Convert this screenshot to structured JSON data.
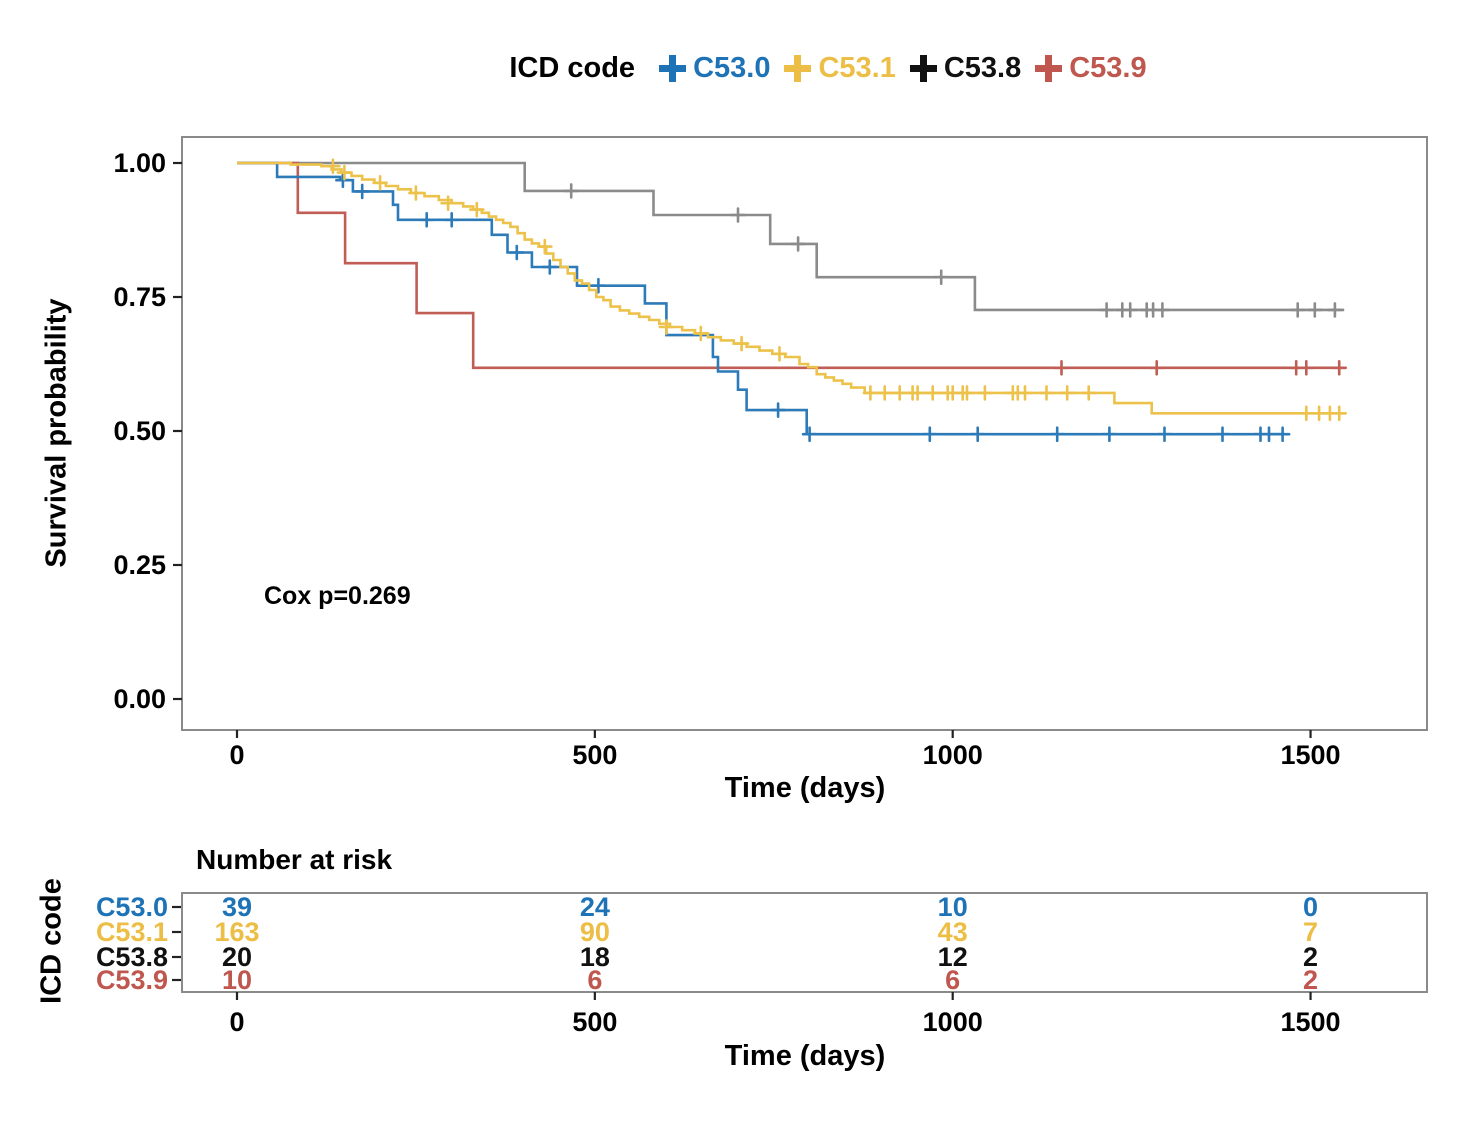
{
  "legend": {
    "title": "ICD code"
  },
  "annotation": {
    "cox_p": "Cox p=0.269"
  },
  "axes": {
    "x": {
      "label": "Time (days)",
      "tick_labels": [
        "0",
        "500",
        "1000",
        "1500"
      ],
      "tick_values": [
        0,
        500,
        1000,
        1500
      ]
    },
    "y": {
      "label": "Survival probability",
      "tick_labels": [
        "1.00",
        "0.75",
        "0.50",
        "0.25",
        "0.00"
      ],
      "tick_values": [
        1.0,
        0.75,
        0.5,
        0.25,
        0.0
      ]
    }
  },
  "risk_table": {
    "title": "Number at risk",
    "ylabel": "ICD code",
    "xlabel": "Time (days)",
    "times": [
      0,
      500,
      1000,
      1500
    ],
    "rows": [
      {
        "label": "C53.0",
        "color": "#1d73b6",
        "values": [
          "39",
          "24",
          "10",
          "0"
        ]
      },
      {
        "label": "C53.1",
        "color": "#ecbe45",
        "values": [
          "163",
          "90",
          "43",
          "7"
        ]
      },
      {
        "label": "C53.8",
        "color": "#111111",
        "values": [
          "20",
          "18",
          "12",
          "2"
        ]
      },
      {
        "label": "C53.9",
        "color": "#bf574f",
        "values": [
          "10",
          "6",
          "6",
          "2"
        ]
      }
    ]
  },
  "chart_data": {
    "type": "line",
    "subtype": "kaplan-meier-step",
    "title": "",
    "xlabel": "Time (days)",
    "ylabel": "Survival probability",
    "xlim": [
      0,
      1662
    ],
    "ylim": [
      0,
      1.05
    ],
    "x_ticks": [
      0,
      500,
      1000,
      1500
    ],
    "y_ticks": [
      0,
      0.25,
      0.5,
      0.75,
      1.0
    ],
    "grid": false,
    "legend_position": "top",
    "annotations": [
      {
        "text": "Cox p=0.269",
        "x_day": 60,
        "y_prob": 0.21
      }
    ],
    "series": [
      {
        "name": "C53.0",
        "label_color": "#1d73b6",
        "curve_color": "#2d7ab8",
        "start": [
          0,
          1.0
        ],
        "steps": [
          [
            56,
            0.974
          ],
          [
            144,
            0.968
          ],
          [
            162,
            0.947
          ],
          [
            218,
            0.922
          ],
          [
            225,
            0.894
          ],
          [
            356,
            0.866
          ],
          [
            378,
            0.833
          ],
          [
            412,
            0.806
          ],
          [
            475,
            0.771
          ],
          [
            570,
            0.738
          ],
          [
            600,
            0.679
          ],
          [
            665,
            0.638
          ],
          [
            672,
            0.611
          ],
          [
            700,
            0.577
          ],
          [
            712,
            0.539
          ],
          [
            796,
            0.494
          ]
        ],
        "censors": [
          [
            148,
            0.968
          ],
          [
            175,
            0.947
          ],
          [
            265,
            0.894
          ],
          [
            300,
            0.894
          ],
          [
            391,
            0.833
          ],
          [
            437,
            0.806
          ],
          [
            505,
            0.771
          ],
          [
            756,
            0.539
          ],
          [
            800,
            0.494
          ],
          [
            968,
            0.494
          ],
          [
            1035,
            0.494
          ],
          [
            1146,
            0.494
          ],
          [
            1219,
            0.494
          ],
          [
            1296,
            0.494
          ],
          [
            1377,
            0.494
          ],
          [
            1430,
            0.494
          ],
          [
            1442,
            0.494
          ],
          [
            1461,
            0.494
          ]
        ],
        "end_day": 1464
      },
      {
        "name": "C53.1",
        "label_color": "#ecbe45",
        "curve_color": "#ecc24a",
        "start": [
          0,
          1.0
        ],
        "steps": [
          [
            75,
            0.997
          ],
          [
            118,
            0.994
          ],
          [
            132,
            0.988
          ],
          [
            146,
            0.982
          ],
          [
            160,
            0.976
          ],
          [
            175,
            0.969
          ],
          [
            192,
            0.963
          ],
          [
            208,
            0.957
          ],
          [
            225,
            0.951
          ],
          [
            243,
            0.944
          ],
          [
            262,
            0.938
          ],
          [
            282,
            0.931
          ],
          [
            300,
            0.925
          ],
          [
            316,
            0.919
          ],
          [
            330,
            0.913
          ],
          [
            342,
            0.907
          ],
          [
            352,
            0.9
          ],
          [
            362,
            0.894
          ],
          [
            372,
            0.888
          ],
          [
            382,
            0.881
          ],
          [
            392,
            0.869
          ],
          [
            402,
            0.857
          ],
          [
            412,
            0.85
          ],
          [
            422,
            0.844
          ],
          [
            432,
            0.831
          ],
          [
            442,
            0.819
          ],
          [
            452,
            0.806
          ],
          [
            462,
            0.794
          ],
          [
            472,
            0.781
          ],
          [
            482,
            0.775
          ],
          [
            492,
            0.763
          ],
          [
            502,
            0.75
          ],
          [
            512,
            0.744
          ],
          [
            522,
            0.732
          ],
          [
            535,
            0.725
          ],
          [
            548,
            0.719
          ],
          [
            562,
            0.713
          ],
          [
            576,
            0.707
          ],
          [
            590,
            0.7
          ],
          [
            605,
            0.694
          ],
          [
            622,
            0.688
          ],
          [
            640,
            0.682
          ],
          [
            658,
            0.675
          ],
          [
            676,
            0.669
          ],
          [
            694,
            0.663
          ],
          [
            712,
            0.657
          ],
          [
            730,
            0.65
          ],
          [
            748,
            0.644
          ],
          [
            766,
            0.638
          ],
          [
            786,
            0.625
          ],
          [
            798,
            0.619
          ],
          [
            810,
            0.606
          ],
          [
            822,
            0.6
          ],
          [
            834,
            0.594
          ],
          [
            846,
            0.588
          ],
          [
            858,
            0.581
          ],
          [
            877,
            0.571
          ],
          [
            1226,
            0.552
          ],
          [
            1278,
            0.533
          ]
        ],
        "censors": [
          [
            134,
            0.994
          ],
          [
            150,
            0.982
          ],
          [
            200,
            0.963
          ],
          [
            250,
            0.944
          ],
          [
            295,
            0.925
          ],
          [
            335,
            0.913
          ],
          [
            430,
            0.844
          ],
          [
            600,
            0.694
          ],
          [
            648,
            0.682
          ],
          [
            705,
            0.663
          ],
          [
            758,
            0.644
          ],
          [
            885,
            0.571
          ],
          [
            905,
            0.571
          ],
          [
            926,
            0.571
          ],
          [
            944,
            0.571
          ],
          [
            951,
            0.571
          ],
          [
            972,
            0.571
          ],
          [
            993,
            0.571
          ],
          [
            1000,
            0.571
          ],
          [
            1014,
            0.571
          ],
          [
            1020,
            0.571
          ],
          [
            1045,
            0.571
          ],
          [
            1084,
            0.571
          ],
          [
            1091,
            0.571
          ],
          [
            1101,
            0.571
          ],
          [
            1131,
            0.571
          ],
          [
            1160,
            0.571
          ],
          [
            1190,
            0.571
          ],
          [
            1494,
            0.533
          ],
          [
            1512,
            0.533
          ],
          [
            1527,
            0.533
          ],
          [
            1540,
            0.533
          ]
        ],
        "end_day": 1549
      },
      {
        "name": "C53.8",
        "label_color": "#111111",
        "curve_color": "#8b8b8b",
        "start": [
          0,
          1.0
        ],
        "steps": [
          [
            402,
            0.948
          ],
          [
            582,
            0.903
          ],
          [
            745,
            0.849
          ],
          [
            810,
            0.787
          ],
          [
            1031,
            0.726
          ]
        ],
        "censors": [
          [
            467,
            0.948
          ],
          [
            700,
            0.903
          ],
          [
            784,
            0.849
          ],
          [
            984,
            0.787
          ],
          [
            1215,
            0.726
          ],
          [
            1237,
            0.726
          ],
          [
            1248,
            0.726
          ],
          [
            1271,
            0.726
          ],
          [
            1280,
            0.726
          ],
          [
            1293,
            0.726
          ],
          [
            1482,
            0.726
          ],
          [
            1506,
            0.726
          ],
          [
            1534,
            0.726
          ]
        ],
        "end_day": 1547
      },
      {
        "name": "C53.9",
        "label_color": "#bf574f",
        "curve_color": "#c05d55",
        "start": [
          0,
          1.0
        ],
        "steps": [
          [
            85,
            0.907
          ],
          [
            151,
            0.813
          ],
          [
            251,
            0.72
          ],
          [
            330,
            0.618
          ]
        ],
        "censors": [
          [
            1152,
            0.618
          ],
          [
            1285,
            0.618
          ],
          [
            1480,
            0.618
          ],
          [
            1494,
            0.618
          ],
          [
            1540,
            0.618
          ]
        ],
        "end_day": 1549
      }
    ]
  }
}
